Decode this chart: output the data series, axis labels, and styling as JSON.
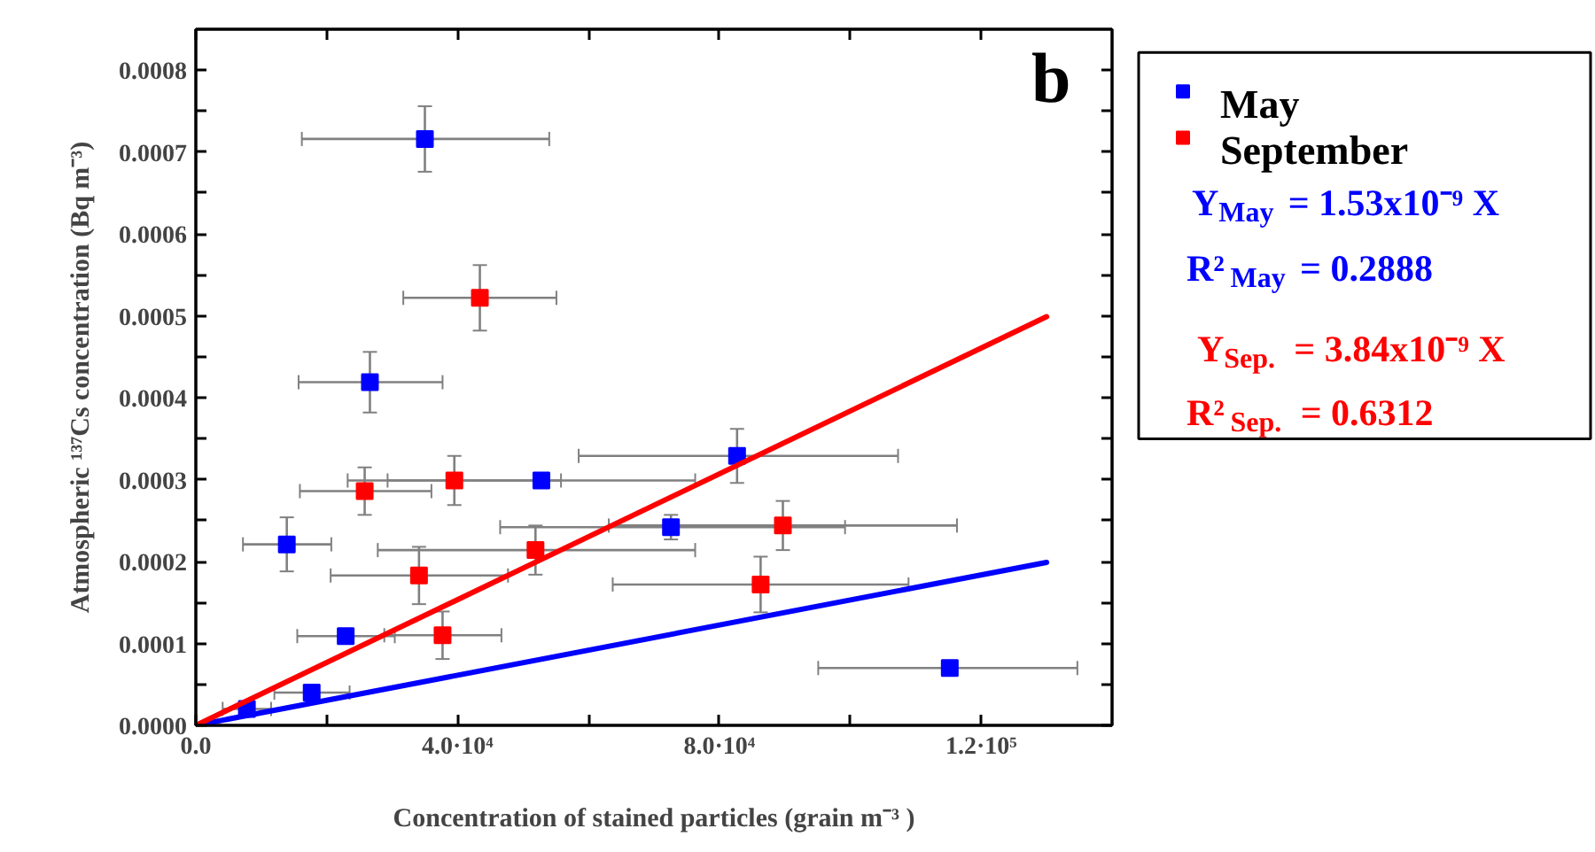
{
  "chart_data": {
    "type": "scatter",
    "xlabel": "Concentration of stained particles (grain m⁻³ )",
    "ylabel": "Atmospheric ¹³⁷Cs concentration (Bq m⁻³)",
    "xlim": [
      0,
      140000
    ],
    "ylim": [
      0,
      0.00085
    ],
    "xticks": [
      {
        "value": 0,
        "label": "0.0"
      },
      {
        "value": 20000,
        "label": null
      },
      {
        "value": 40000,
        "label": "4.0·10⁴"
      },
      {
        "value": 60000,
        "label": null
      },
      {
        "value": 80000,
        "label": "8.0·10⁴"
      },
      {
        "value": 100000,
        "label": null
      },
      {
        "value": 120000,
        "label": "1.2·10⁵"
      }
    ],
    "yticks": [
      {
        "value": 0,
        "label": "0.0000"
      },
      {
        "value": 5e-05,
        "label": null
      },
      0.0001,
      {
        "value": 0.00015,
        "label": null
      },
      0.0002,
      {
        "value": 0.00025,
        "label": null
      },
      0.0003,
      {
        "value": 0.00035,
        "label": null
      },
      0.0004,
      {
        "value": 0.00045,
        "label": null
      },
      0.0005,
      {
        "value": 0.00055,
        "label": null
      },
      0.0006,
      {
        "value": 0.00065,
        "label": null
      },
      0.0007,
      {
        "value": 0.00075,
        "label": null
      },
      0.0008
    ],
    "legend": "right",
    "marker": "square",
    "series": [
      {
        "name": "May",
        "color": "#0000ff",
        "x": [
          35000,
          26600,
          52800,
          13900,
          22900,
          17700,
          7800,
          82700,
          72600,
          115200
        ],
        "values": [
          0.000716,
          0.000419,
          0.000299,
          0.000221,
          0.000109,
          4e-05,
          2e-05,
          0.000329,
          0.000242,
          7e-05
        ],
        "errors": [
          4e-05,
          3.7e-05,
          null,
          3.3e-05,
          null,
          null,
          null,
          3.3e-05,
          1.5e-05,
          null
        ],
        "xerrors": [
          [
            16200,
            54000
          ],
          [
            15700,
            37700
          ],
          [
            23200,
            76300
          ],
          [
            7200,
            20700
          ],
          [
            15500,
            30400
          ],
          [
            12000,
            23500
          ],
          [
            4100,
            11500
          ],
          [
            58500,
            107300
          ],
          [
            46500,
            99200
          ],
          [
            95100,
            134700
          ]
        ]
      },
      {
        "name": "September",
        "color": "#ff0000",
        "x": [
          43400,
          25800,
          39500,
          51900,
          34100,
          37700,
          86300,
          89700
        ],
        "values": [
          0.000522,
          0.000286,
          0.000299,
          0.000214,
          0.000183,
          0.00011,
          0.000172,
          0.000244
        ],
        "errors": [
          4e-05,
          2.9e-05,
          3e-05,
          3e-05,
          3.5e-05,
          2.9e-05,
          3.4e-05,
          3e-05
        ],
        "xerrors": [
          [
            31700,
            55100
          ],
          [
            15900,
            36000
          ],
          [
            29300,
            55800
          ],
          [
            27800,
            76300
          ],
          [
            20600,
            47700
          ],
          [
            28800,
            46700
          ],
          [
            63700,
            108900
          ],
          [
            63100,
            116300
          ]
        ]
      },
      {
        "color": "#0000ff",
        "type": "line",
        "marker": "none",
        "x": [
          0,
          130000
        ],
        "values": [
          0,
          0.000199
        ]
      },
      {
        "color": "#ff0000",
        "type": "line",
        "marker": "none",
        "x": [
          0,
          130000
        ],
        "values": [
          0,
          0.000499
        ]
      }
    ],
    "annotations": [
      "b",
      "Y$_{May}$ = 1.53x10⁻⁹ X",
      "R²$_{May}$ = 0.2888",
      "Y$_{Sep.}$ = 3.84x10⁻⁹ X",
      "R²$_{Sep.}$ = 0.6312"
    ]
  }
}
